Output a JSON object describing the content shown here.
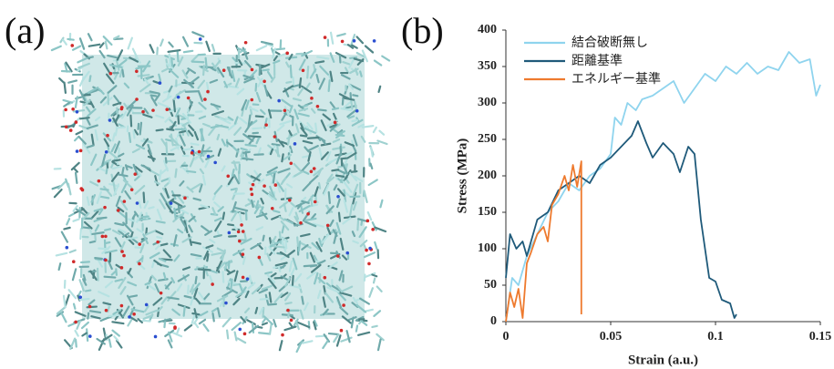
{
  "panel_labels": [
    "(a)",
    "(b)"
  ],
  "chart_data": {
    "type": "line",
    "x_label": "Strain (a.u.)",
    "y_label": "Stress (MPa)",
    "xlim": [
      0,
      0.15
    ],
    "xticks": [
      0,
      0.05,
      0.1,
      0.15
    ],
    "ylim": [
      0,
      400
    ],
    "yticks": [
      0,
      50,
      100,
      150,
      200,
      250,
      300,
      350,
      400
    ],
    "legend": "upper left",
    "series": [
      {
        "name": "結合破断無し",
        "color": "#8fd4ee",
        "x": [
          0,
          0.003,
          0.006,
          0.01,
          0.015,
          0.02,
          0.025,
          0.03,
          0.035,
          0.04,
          0.045,
          0.05,
          0.052,
          0.055,
          0.058,
          0.062,
          0.065,
          0.07,
          0.075,
          0.08,
          0.085,
          0.09,
          0.095,
          0.1,
          0.105,
          0.11,
          0.115,
          0.12,
          0.125,
          0.13,
          0.135,
          0.14,
          0.145,
          0.148,
          0.15
        ],
        "values": [
          0,
          60,
          50,
          90,
          120,
          150,
          165,
          190,
          180,
          200,
          210,
          230,
          280,
          270,
          300,
          290,
          305,
          310,
          320,
          330,
          300,
          320,
          340,
          330,
          350,
          340,
          355,
          340,
          350,
          345,
          370,
          355,
          360,
          310,
          325
        ]
      },
      {
        "name": "距離基準",
        "color": "#1f5a7a",
        "x": [
          0,
          0.002,
          0.005,
          0.008,
          0.01,
          0.015,
          0.02,
          0.025,
          0.03,
          0.035,
          0.04,
          0.045,
          0.05,
          0.055,
          0.06,
          0.063,
          0.067,
          0.07,
          0.075,
          0.08,
          0.083,
          0.087,
          0.09,
          0.093,
          0.097,
          0.1,
          0.103,
          0.107,
          0.109,
          0.11
        ],
        "values": [
          60,
          120,
          100,
          110,
          90,
          140,
          150,
          180,
          190,
          200,
          190,
          215,
          225,
          240,
          255,
          275,
          245,
          225,
          245,
          230,
          205,
          240,
          230,
          140,
          60,
          55,
          30,
          25,
          5,
          10
        ]
      },
      {
        "name": "エネルギー基準",
        "color": "#ee7a2e",
        "x": [
          0,
          0.002,
          0.004,
          0.006,
          0.008,
          0.01,
          0.012,
          0.015,
          0.018,
          0.02,
          0.022,
          0.025,
          0.028,
          0.03,
          0.032,
          0.034,
          0.036,
          0.036
        ],
        "values": [
          0,
          40,
          20,
          45,
          5,
          80,
          95,
          120,
          130,
          110,
          160,
          175,
          200,
          180,
          215,
          185,
          220,
          10
        ]
      }
    ]
  }
}
